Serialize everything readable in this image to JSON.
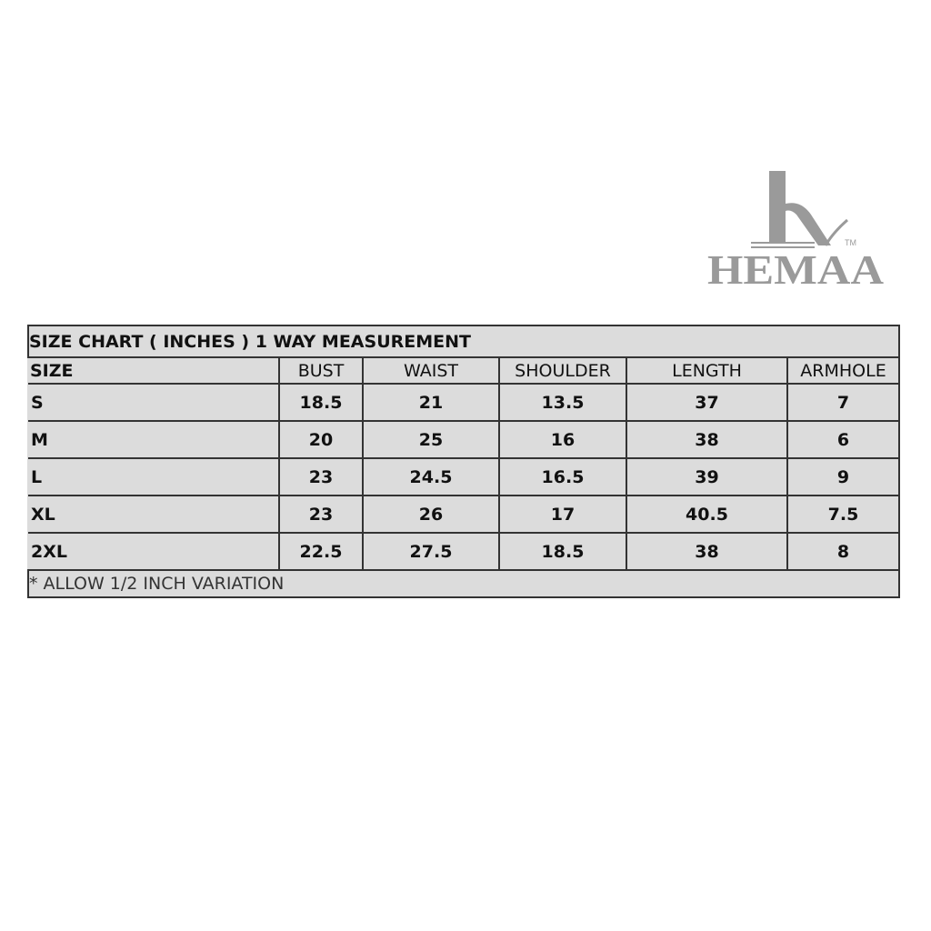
{
  "logo": {
    "text": "HEMAA",
    "trademark": "TM"
  },
  "table": {
    "title": "SIZE CHART ( INCHES ) 1 WAY MEASUREMENT",
    "headers": [
      "SIZE",
      "BUST",
      "WAIST",
      "SHOULDER",
      "LENGTH",
      "ARMHOLE"
    ],
    "rows": [
      [
        "S",
        "18.5",
        "21",
        "13.5",
        "37",
        "7"
      ],
      [
        "M",
        "20",
        "25",
        "16",
        "38",
        "6"
      ],
      [
        "L",
        "23",
        "24.5",
        "16.5",
        "39",
        "9"
      ],
      [
        "XL",
        "23",
        "26",
        "17",
        "40.5",
        "7.5"
      ],
      [
        "2XL",
        "22.5",
        "27.5",
        "18.5",
        "38",
        "8"
      ]
    ],
    "note": "* ALLOW 1/2 INCH VARIATION"
  },
  "colors": {
    "table_bg": "#dcdcdc",
    "logo": "#9a9a9a"
  }
}
